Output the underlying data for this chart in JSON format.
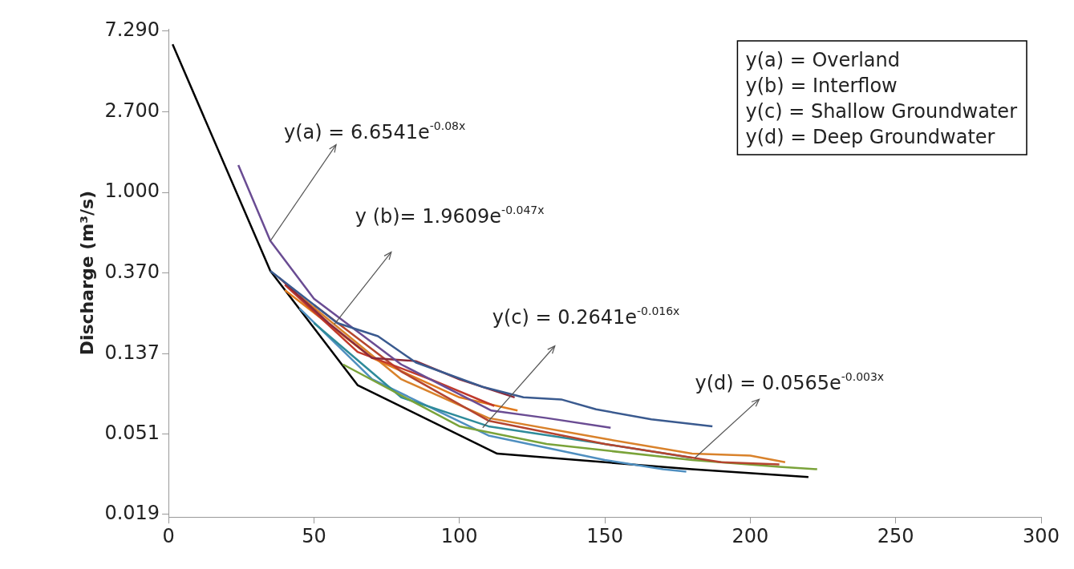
{
  "chart_data": {
    "type": "line",
    "ylabel": "Discharge (m³/s)",
    "log": "y",
    "grid": false,
    "legend": false,
    "marker": "none",
    "line_style": "solid",
    "xlim": [
      0,
      300
    ],
    "xticks": [
      0,
      50,
      100,
      150,
      200,
      250,
      300
    ],
    "ylim": [
      0.0183,
      7.5
    ],
    "yticks": [
      {
        "value": 0.019,
        "label": "0.019"
      },
      {
        "value": 0.051,
        "label": "0.051"
      },
      {
        "value": 0.137,
        "label": "0.137"
      },
      {
        "value": 0.37,
        "label": "0.370"
      },
      {
        "value": 1,
        "label": "1.000"
      },
      {
        "value": 2.7,
        "label": "2.700"
      },
      {
        "value": 7.29,
        "label": "7.290"
      }
    ],
    "annotations": [
      {
        "text": "y(a) = 6.6541e$^{-0.08x}$",
        "x": 35,
        "y": 0.55
      },
      {
        "text": "y (b)= 1.9609e$^{-0.047x}$",
        "x": 57,
        "y": 0.197
      },
      {
        "text": "y(c) = 0.2641e$^{-0.016x}$",
        "x": 108,
        "y": 0.055
      },
      {
        "text": "y(d) = 0.0565e$^{-0.003x}$",
        "x": 181,
        "y": 0.038
      },
      "y(a) = Overland",
      "y(b) = Interflow",
      "y(c) = Shallow Groundwater",
      "y(d) = Deep Groundwater"
    ],
    "series": [
      {
        "color": "#3a5a8f",
        "x": [
          35,
          58,
          72,
          85,
          108,
          122,
          135,
          147,
          166,
          187
        ],
        "values": [
          0.38,
          0.2,
          0.17,
          0.123,
          0.091,
          0.08,
          0.078,
          0.069,
          0.061,
          0.056
        ]
      },
      {
        "color": "#6a4c93",
        "x": [
          24,
          35,
          50,
          80,
          111,
          130,
          152
        ],
        "values": [
          1.4,
          0.55,
          0.27,
          0.12,
          0.068,
          0.062,
          0.055
        ]
      },
      {
        "color": "#8b2a3a",
        "x": [
          38,
          55,
          70,
          85,
          100,
          119
        ],
        "values": [
          0.35,
          0.2,
          0.13,
          0.125,
          0.1,
          0.08
        ]
      },
      {
        "color": "#c0392b",
        "x": [
          40,
          65,
          90,
          112
        ],
        "values": [
          0.32,
          0.14,
          0.1,
          0.072
        ]
      },
      {
        "color": "#b5452f",
        "x": [
          50,
          80,
          110,
          150,
          190,
          210
        ],
        "values": [
          0.25,
          0.11,
          0.06,
          0.045,
          0.036,
          0.035
        ]
      },
      {
        "color": "#e07b1f",
        "x": [
          40,
          70,
          100,
          120
        ],
        "values": [
          0.3,
          0.13,
          0.08,
          0.068
        ]
      },
      {
        "color": "#d9822b",
        "x": [
          45,
          80,
          110,
          150,
          180,
          200,
          212
        ],
        "values": [
          0.28,
          0.1,
          0.062,
          0.048,
          0.04,
          0.039,
          0.036
        ]
      },
      {
        "color": "#7aa33a",
        "x": [
          60,
          100,
          130,
          180,
          210,
          223
        ],
        "values": [
          0.12,
          0.056,
          0.045,
          0.037,
          0.034,
          0.033
        ]
      },
      {
        "color": "#2e8b9a",
        "x": [
          50,
          80,
          110,
          150,
          180
        ],
        "values": [
          0.2,
          0.08,
          0.056,
          0.045,
          0.038
        ]
      },
      {
        "color": "#4f8fc0",
        "x": [
          45,
          70,
          110,
          150,
          170,
          178
        ],
        "values": [
          0.24,
          0.1,
          0.05,
          0.037,
          0.033,
          0.032
        ]
      },
      {
        "color": "#000000",
        "x": [
          1.4,
          35,
          65,
          113,
          180,
          220
        ],
        "values": [
          6.2,
          0.38,
          0.093,
          0.04,
          0.033,
          0.03
        ]
      }
    ]
  }
}
